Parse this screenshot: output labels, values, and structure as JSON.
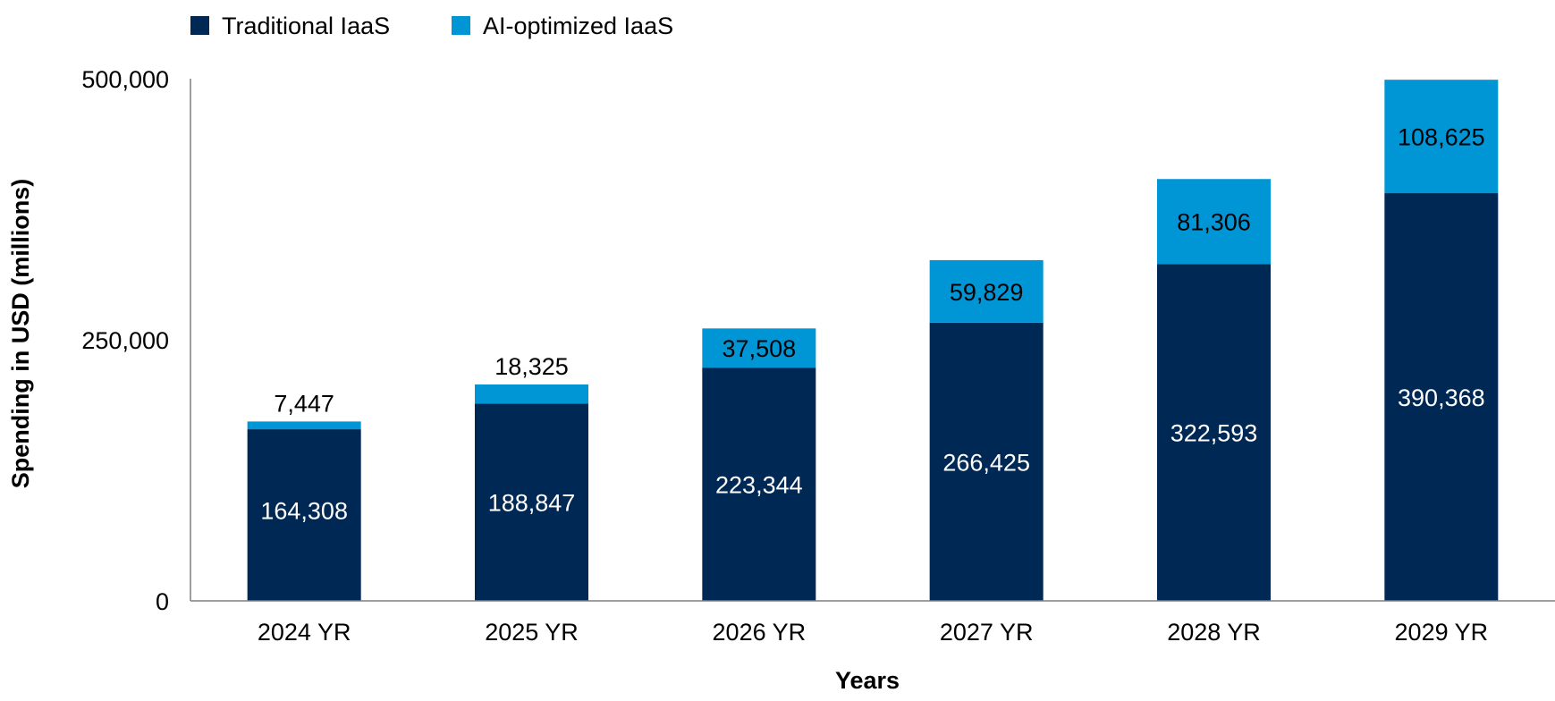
{
  "chart_data": {
    "type": "bar",
    "stacked": true,
    "categories": [
      "2024 YR",
      "2025 YR",
      "2026 YR",
      "2027 YR",
      "2028 YR",
      "2029 YR"
    ],
    "series": [
      {
        "name": "Traditional IaaS",
        "color": "#002855",
        "label_color": "#ffffff",
        "values": [
          164308,
          188847,
          223344,
          266425,
          322593,
          390368
        ],
        "labels": [
          "164,308",
          "188,847",
          "223,344",
          "266,425",
          "322,593",
          "390,368"
        ]
      },
      {
        "name": "AI-optimized IaaS",
        "color": "#0096D6",
        "label_color": "#000000",
        "values": [
          7447,
          18325,
          37508,
          59829,
          81306,
          108625
        ],
        "labels": [
          "7,447",
          "18,325",
          "37,508",
          "59,829",
          "81,306",
          "108,625"
        ]
      }
    ],
    "xlabel": "Years",
    "ylabel": "Spending in USD (millions)",
    "ylim": [
      0,
      500000
    ],
    "yticks": [
      0,
      250000,
      500000
    ],
    "ytick_labels": [
      "0",
      "250,000",
      "500,000"
    ],
    "grid": false,
    "legend_position": "top-left"
  }
}
